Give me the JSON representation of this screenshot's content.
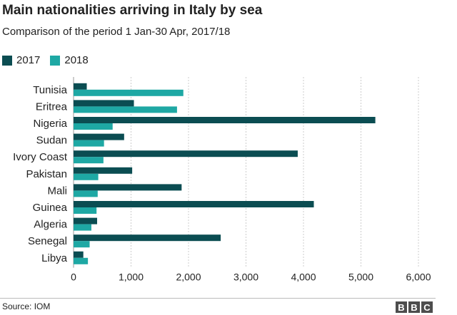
{
  "header": {
    "title": "Main nationalities arriving in Italy by sea",
    "subtitle": "Comparison of the period 1 Jan-30 Apr, 2017/18"
  },
  "footer": {
    "source": "Source: IOM",
    "logo_letters": [
      "B",
      "B",
      "C"
    ]
  },
  "colors": {
    "series_2017": "#0b4d52",
    "series_2018": "#1ea8a4",
    "grid": "#cccccc",
    "text": "#222222"
  },
  "chart_data": {
    "type": "bar",
    "orientation": "horizontal",
    "title": "Main nationalities arriving in Italy by sea",
    "subtitle": "Comparison of the period 1 Jan-30 Apr, 2017/18",
    "categories": [
      "Tunisia",
      "Eritrea",
      "Nigeria",
      "Sudan",
      "Ivory Coast",
      "Pakistan",
      "Mali",
      "Guinea",
      "Algeria",
      "Senegal",
      "Libya"
    ],
    "series": [
      {
        "name": "2017",
        "values": [
          230,
          1050,
          5250,
          880,
          3900,
          1020,
          1880,
          4180,
          410,
          2560,
          170
        ]
      },
      {
        "name": "2018",
        "values": [
          1910,
          1800,
          680,
          530,
          520,
          430,
          420,
          400,
          310,
          280,
          250
        ]
      }
    ],
    "xlim": [
      0,
      6000
    ],
    "xticks": [
      "0",
      "1,000",
      "2,000",
      "3,000",
      "4,000",
      "5,000",
      "6,000"
    ],
    "xtick_values": [
      0,
      1000,
      2000,
      3000,
      4000,
      5000,
      6000
    ],
    "grid": true,
    "legend_position": "top-left"
  }
}
